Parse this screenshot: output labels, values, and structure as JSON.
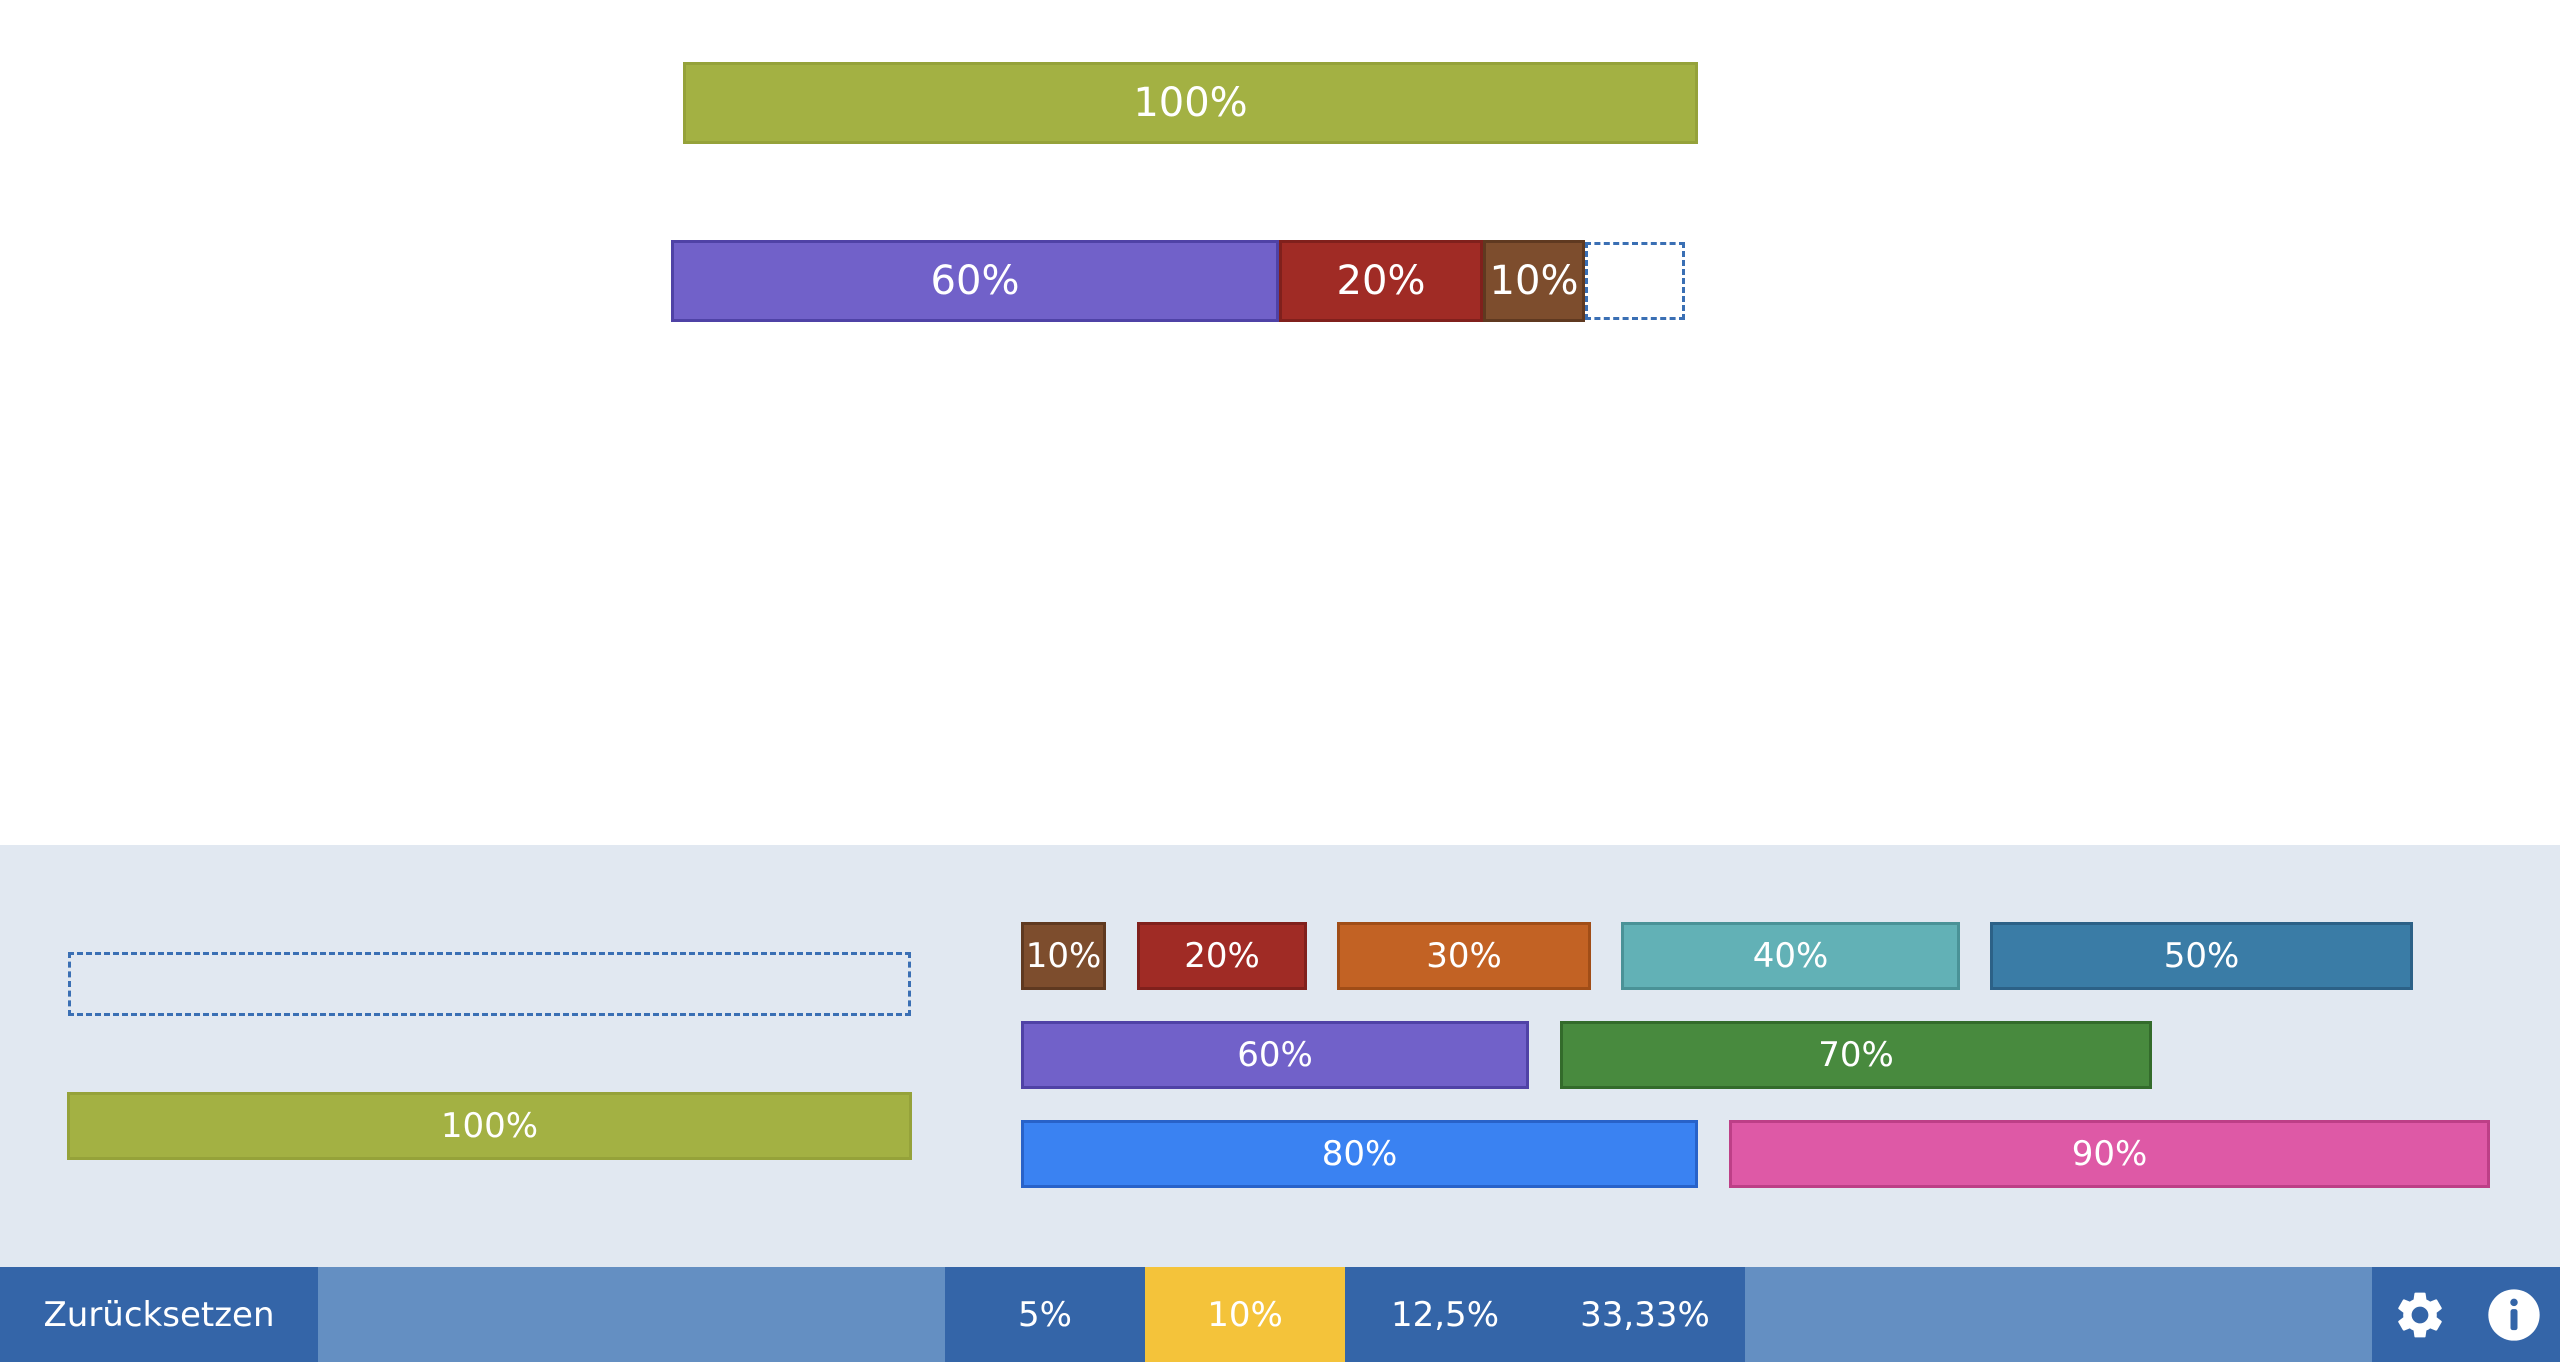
{
  "workspace": {
    "row1": [
      {
        "label": "100%",
        "color": "#a3b143",
        "border": "#95a23a"
      }
    ],
    "row2": [
      {
        "label": "60%",
        "color": "#7161c9",
        "border": "#4f42a6"
      },
      {
        "label": "20%",
        "color": "#a02b25",
        "border": "#80201c"
      },
      {
        "label": "10%",
        "color": "#7d4d2d",
        "border": "#5f3920"
      }
    ]
  },
  "tray": {
    "whole_bar": {
      "label": "100%",
      "color": "#a3b143"
    },
    "pieces": [
      {
        "label": "10%",
        "color": "#7d4d2d"
      },
      {
        "label": "20%",
        "color": "#a02b25"
      },
      {
        "label": "30%",
        "color": "#c26224"
      },
      {
        "label": "40%",
        "color": "#62b1b6"
      },
      {
        "label": "50%",
        "color": "#3a7ca6"
      },
      {
        "label": "60%",
        "color": "#7161c9"
      },
      {
        "label": "70%",
        "color": "#488a3e"
      },
      {
        "label": "80%",
        "color": "#3a82f2"
      },
      {
        "label": "90%",
        "color": "#de59a6"
      }
    ]
  },
  "toolbar": {
    "reset_label": "Zurücksetzen",
    "fractions": [
      "5%",
      "10%",
      "12,5%",
      "33,33%"
    ],
    "selected_fraction": "10%",
    "settings_icon": "gear-icon",
    "info_icon": "info-icon"
  },
  "colors": {
    "toolbar_bg": "#648fc2",
    "toolbar_button": "#3465a8",
    "toolbar_active": "#f4c33a",
    "tray_bg": "#e1e8f1",
    "slot_border": "#3a6fb4"
  }
}
